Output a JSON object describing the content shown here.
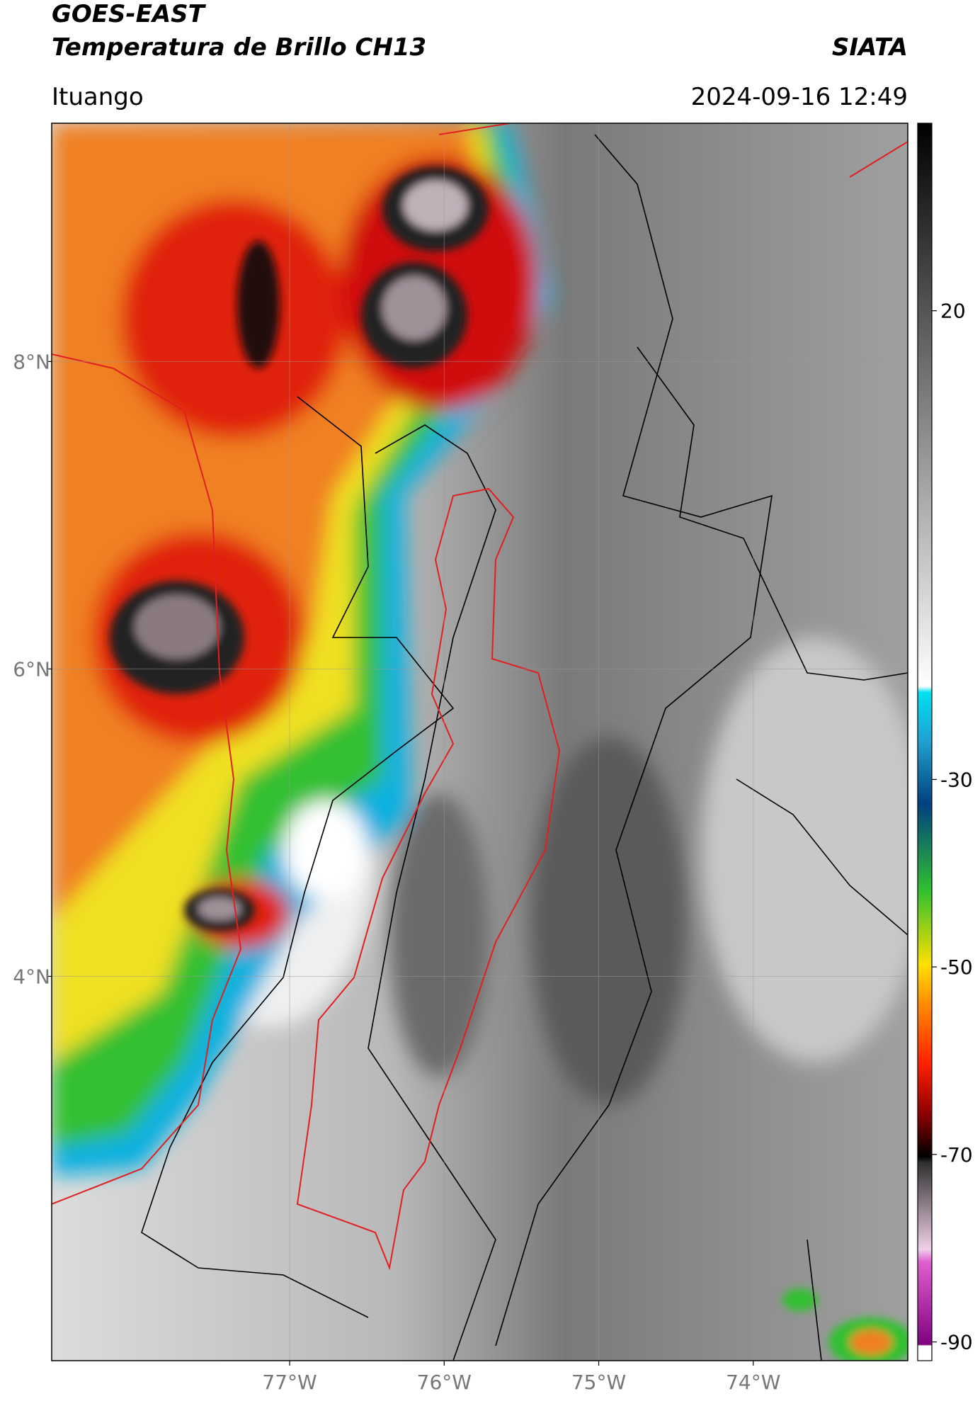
{
  "header": {
    "title": "GOES-EAST",
    "subtitle": "Temperatura de Brillo CH13",
    "brand": "SIATA",
    "region": "Ituango",
    "timestamp": "2024-09-16 12:49"
  },
  "map": {
    "xlim": [
      -78.54,
      -73.0
    ],
    "ylim": [
      1.5,
      9.55
    ],
    "xticks": [
      {
        "value": -77,
        "label": "77°W"
      },
      {
        "value": -76,
        "label": "76°W"
      },
      {
        "value": -75,
        "label": "75°W"
      },
      {
        "value": -74,
        "label": "74°W"
      }
    ],
    "yticks": [
      {
        "value": 4,
        "label": "4°N"
      },
      {
        "value": 6,
        "label": "6°N"
      },
      {
        "value": 8,
        "label": "8°N"
      }
    ]
  },
  "colorbar": {
    "range": [
      -92,
      40
    ],
    "ticks": [
      20,
      -30,
      -50,
      -70,
      -90
    ]
  }
}
